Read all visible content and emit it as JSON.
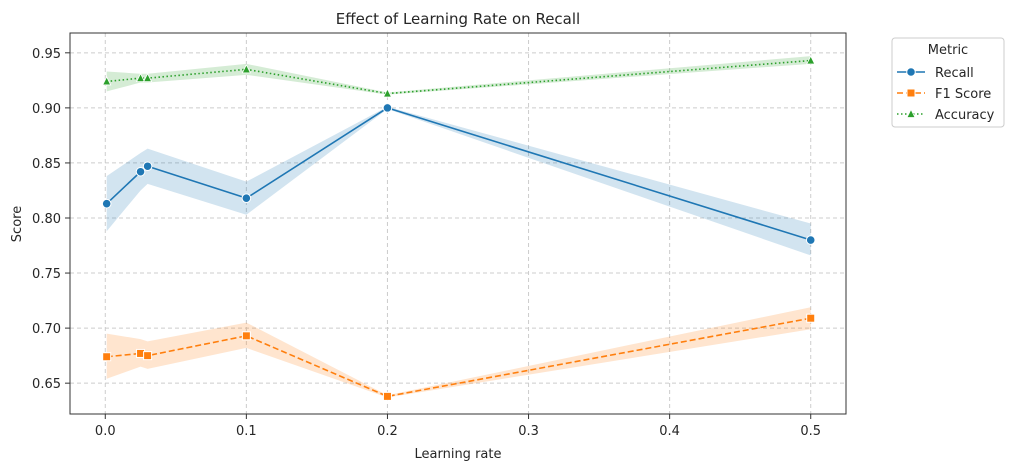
{
  "chart_data": {
    "type": "line",
    "title": "Effect of Learning Rate on Recall",
    "xlabel": "Learning rate",
    "ylabel": "Score",
    "xlim": [
      -0.025,
      0.525
    ],
    "ylim": [
      0.622,
      0.968
    ],
    "xticks": [
      0.0,
      0.1,
      0.2,
      0.3,
      0.4,
      0.5
    ],
    "xtick_labels": [
      "0.0",
      "0.1",
      "0.2",
      "0.3",
      "0.4",
      "0.5"
    ],
    "yticks": [
      0.65,
      0.7,
      0.75,
      0.8,
      0.85,
      0.9,
      0.95
    ],
    "ytick_labels": [
      "0.65",
      "0.70",
      "0.75",
      "0.80",
      "0.85",
      "0.90",
      "0.95"
    ],
    "grid": true,
    "legend": {
      "title": "Metric",
      "position": "outside-top-right"
    },
    "x": [
      0.001,
      0.025,
      0.03,
      0.1,
      0.2,
      0.5
    ],
    "series": [
      {
        "name": "Recall",
        "color": "#1f77b4",
        "marker": "circle",
        "linestyle": "solid",
        "values": [
          0.813,
          0.842,
          0.847,
          0.818,
          0.9,
          0.78
        ],
        "ci_low": [
          0.788,
          0.825,
          0.831,
          0.803,
          0.899,
          0.766
        ],
        "ci_high": [
          0.838,
          0.859,
          0.863,
          0.833,
          0.901,
          0.795
        ]
      },
      {
        "name": "F1 Score",
        "color": "#ff7f0e",
        "marker": "square",
        "linestyle": "dashed",
        "values": [
          0.674,
          0.677,
          0.675,
          0.693,
          0.638,
          0.709
        ],
        "ci_low": [
          0.654,
          0.665,
          0.663,
          0.682,
          0.637,
          0.699
        ],
        "ci_high": [
          0.695,
          0.69,
          0.688,
          0.705,
          0.639,
          0.719
        ]
      },
      {
        "name": "Accuracy",
        "color": "#2ca02c",
        "marker": "triangle",
        "linestyle": "dotted",
        "values": [
          0.924,
          0.927,
          0.927,
          0.935,
          0.913,
          0.943
        ],
        "ci_low": [
          0.915,
          0.923,
          0.923,
          0.93,
          0.912,
          0.94
        ],
        "ci_high": [
          0.933,
          0.931,
          0.931,
          0.94,
          0.914,
          0.947
        ]
      }
    ]
  }
}
